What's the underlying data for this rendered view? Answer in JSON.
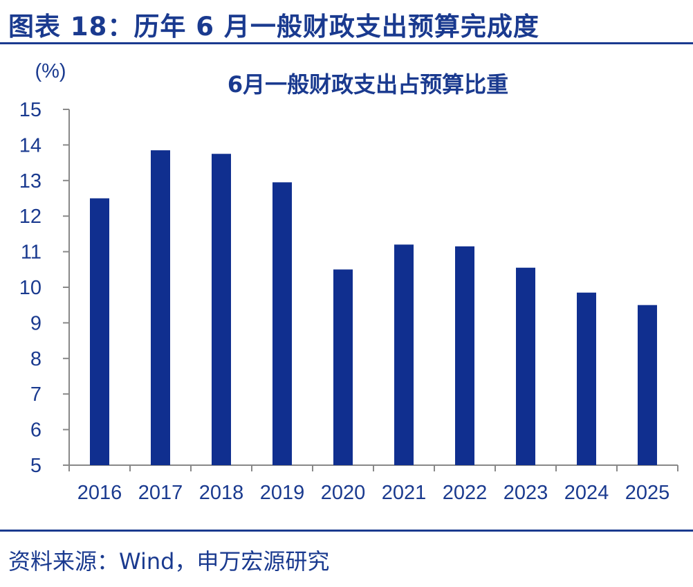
{
  "figure": {
    "title": "图表 18：历年 6 月一般财政支出预算完成度",
    "source": "资料来源：Wind，申万宏源研究"
  },
  "colors": {
    "bar": "#102f8f",
    "text": "#1a3a8f",
    "axis": "#888888"
  },
  "chart_data": {
    "type": "bar",
    "title": "6月一般财政支出占预算比重",
    "ylabel": "(%)",
    "xlabel": "",
    "ylim": [
      5,
      15
    ],
    "yticks": [
      5,
      6,
      7,
      8,
      9,
      10,
      11,
      12,
      13,
      14,
      15
    ],
    "categories": [
      "2016",
      "2017",
      "2018",
      "2019",
      "2020",
      "2021",
      "2022",
      "2023",
      "2024",
      "2025"
    ],
    "values": [
      12.5,
      13.85,
      13.75,
      12.95,
      10.5,
      11.2,
      11.15,
      10.55,
      9.85,
      9.5
    ],
    "grid": false,
    "legend": "none"
  }
}
